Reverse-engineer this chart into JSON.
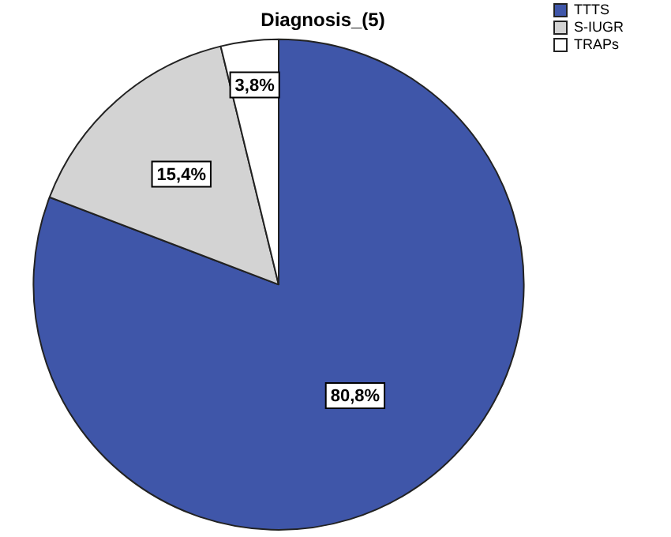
{
  "chart_data": {
    "type": "pie",
    "title": "Diagnosis_(5)",
    "categories": [
      "TTTS",
      "S-IUGR",
      "TRAPs"
    ],
    "values": [
      80.8,
      15.4,
      3.8
    ],
    "colors": [
      "#3f56a9",
      "#d3d3d3",
      "#ffffff"
    ],
    "value_labels": [
      "80,8%",
      "15,4%",
      "3,8%"
    ],
    "legend": "top right"
  }
}
